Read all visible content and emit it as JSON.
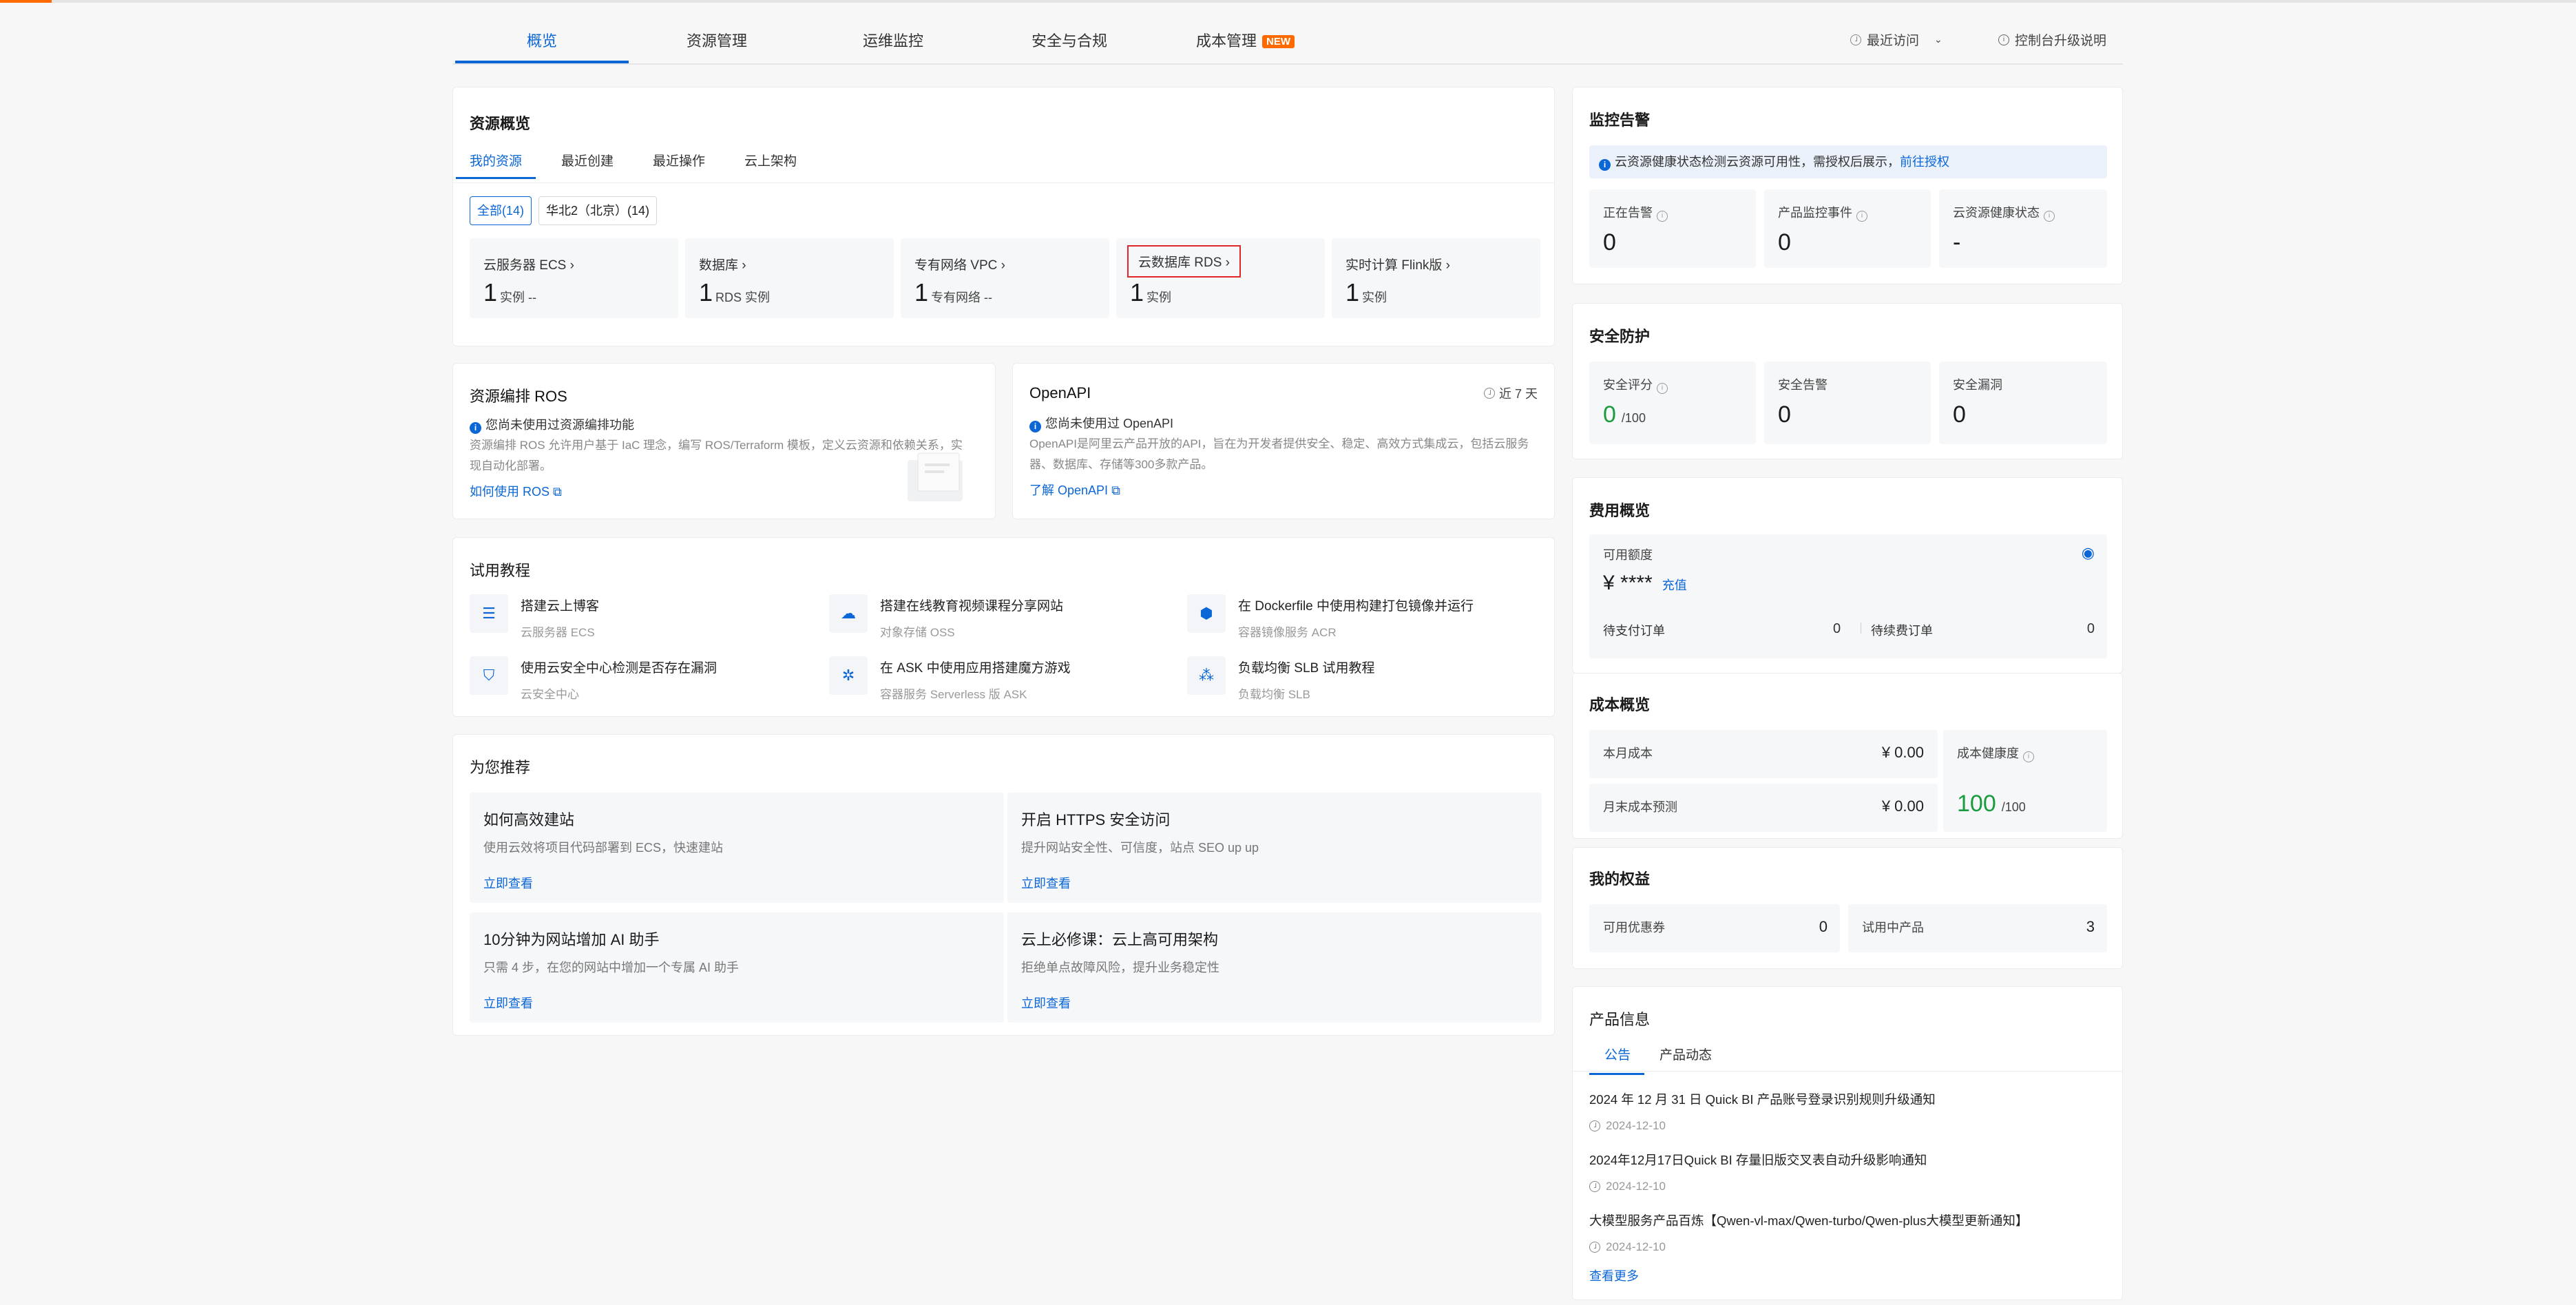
{
  "nav": {
    "tabs": [
      "概览",
      "资源管理",
      "运维监控",
      "安全与合规",
      "成本管理"
    ],
    "new_badge": "NEW",
    "recent": "最近访问",
    "upgrade": "控制台升级说明"
  },
  "resource_overview": {
    "title": "资源概览",
    "tabs": [
      "我的资源",
      "最近创建",
      "最近操作",
      "云上架构"
    ],
    "filters": [
      "全部(14)",
      "华北2（北京）(14)"
    ],
    "cells": [
      {
        "name": "云服务器 ECS",
        "count": "1",
        "unit": "实例 --"
      },
      {
        "name": "数据库",
        "count": "1",
        "unit": "RDS 实例"
      },
      {
        "name": "专有网络 VPC",
        "count": "1",
        "unit": "专有网络 --"
      },
      {
        "name": "云数据库 RDS",
        "count": "1",
        "unit": "实例"
      },
      {
        "name": "实时计算 Flink版",
        "count": "1",
        "unit": "实例"
      }
    ]
  },
  "ros": {
    "title": "资源编排 ROS",
    "notice": "您尚未使用过资源编排功能",
    "desc": "资源编排 ROS 允许用户基于 IaC 理念，编写 ROS/Terraform 模板，定义云资源和依赖关系，实现自动化部署。",
    "link": "如何使用 ROS"
  },
  "openapi": {
    "title": "OpenAPI",
    "range": "近 7 天",
    "notice": "您尚未使用过 OpenAPI",
    "desc": "OpenAPI是阿里云产品开放的API，旨在为开发者提供安全、稳定、高效方式集成云，包括云服务器、数据库、存储等300多款产品。",
    "link": "了解 OpenAPI"
  },
  "tutorials": {
    "title": "试用教程",
    "items": [
      {
        "title": "搭建云上博客",
        "sub": "云服务器 ECS"
      },
      {
        "title": "搭建在线教育视频课程分享网站",
        "sub": "对象存储 OSS"
      },
      {
        "title": "在 Dockerfile 中使用构建打包镜像并运行",
        "sub": "容器镜像服务 ACR"
      },
      {
        "title": "使用云安全中心检测是否存在漏洞",
        "sub": "云安全中心"
      },
      {
        "title": "在 ASK 中使用应用搭建魔方游戏",
        "sub": "容器服务 Serverless 版 ASK"
      },
      {
        "title": "负载均衡 SLB 试用教程",
        "sub": "负载均衡 SLB"
      }
    ]
  },
  "recommend": {
    "title": "为您推荐",
    "items": [
      {
        "title": "如何高效建站",
        "desc": "使用云效将项目代码部署到 ECS，快速建站",
        "action": "立即查看"
      },
      {
        "title": "开启 HTTPS 安全访问",
        "desc": "提升网站安全性、可信度，站点 SEO up up",
        "action": "立即查看"
      },
      {
        "title": "10分钟为网站增加 AI 助手",
        "desc": "只需 4 步，在您的网站中增加一个专属 AI 助手",
        "action": "立即查看"
      },
      {
        "title": "云上必修课：云上高可用架构",
        "desc": "拒绝单点故障风险，提升业务稳定性",
        "action": "立即查看"
      }
    ]
  },
  "monitor": {
    "title": "监控告警",
    "notice": "云资源健康状态检测云资源可用性，需授权后展示",
    "notice_link": "前往授权",
    "stats": [
      {
        "label": "正在告警",
        "value": "0"
      },
      {
        "label": "产品监控事件",
        "value": "0"
      },
      {
        "label": "云资源健康状态",
        "value": "-"
      }
    ]
  },
  "security": {
    "title": "安全防护",
    "score_label": "安全评分",
    "score": "0",
    "score_max": "/100",
    "alert_label": "安全告警",
    "alert": "0",
    "vuln_label": "安全漏洞",
    "vuln": "0"
  },
  "fee": {
    "title": "费用概览",
    "balance_label": "可用额度",
    "currency": "¥",
    "balance": "****",
    "recharge": "充值",
    "pending_pay_label": "待支付订单",
    "pending_pay": "0",
    "pending_renew_label": "待续费订单",
    "pending_renew": "0"
  },
  "cost": {
    "title": "成本概览",
    "month_label": "本月成本",
    "month": "¥ 0.00",
    "forecast_label": "月末成本预测",
    "forecast": "¥ 0.00",
    "health_label": "成本健康度",
    "health": "100",
    "health_max": "/100"
  },
  "benefits": {
    "title": "我的权益",
    "coupon_label": "可用优惠券",
    "coupon": "0",
    "trial_label": "试用中产品",
    "trial": "3"
  },
  "product_info": {
    "title": "产品信息",
    "tabs": [
      "公告",
      "产品动态"
    ],
    "news": [
      {
        "title": "2024 年 12 月 31 日 Quick BI 产品账号登录识别规则升级通知",
        "date": "2024-12-10"
      },
      {
        "title": "2024年12月17日Quick BI 存量旧版交叉表自动升级影响通知",
        "date": "2024-12-10"
      },
      {
        "title": "大模型服务产品百炼【Qwen-vl-max/Qwen-turbo/Qwen-plus大模型更新通知】",
        "date": "2024-12-10"
      }
    ],
    "more": "查看更多"
  }
}
